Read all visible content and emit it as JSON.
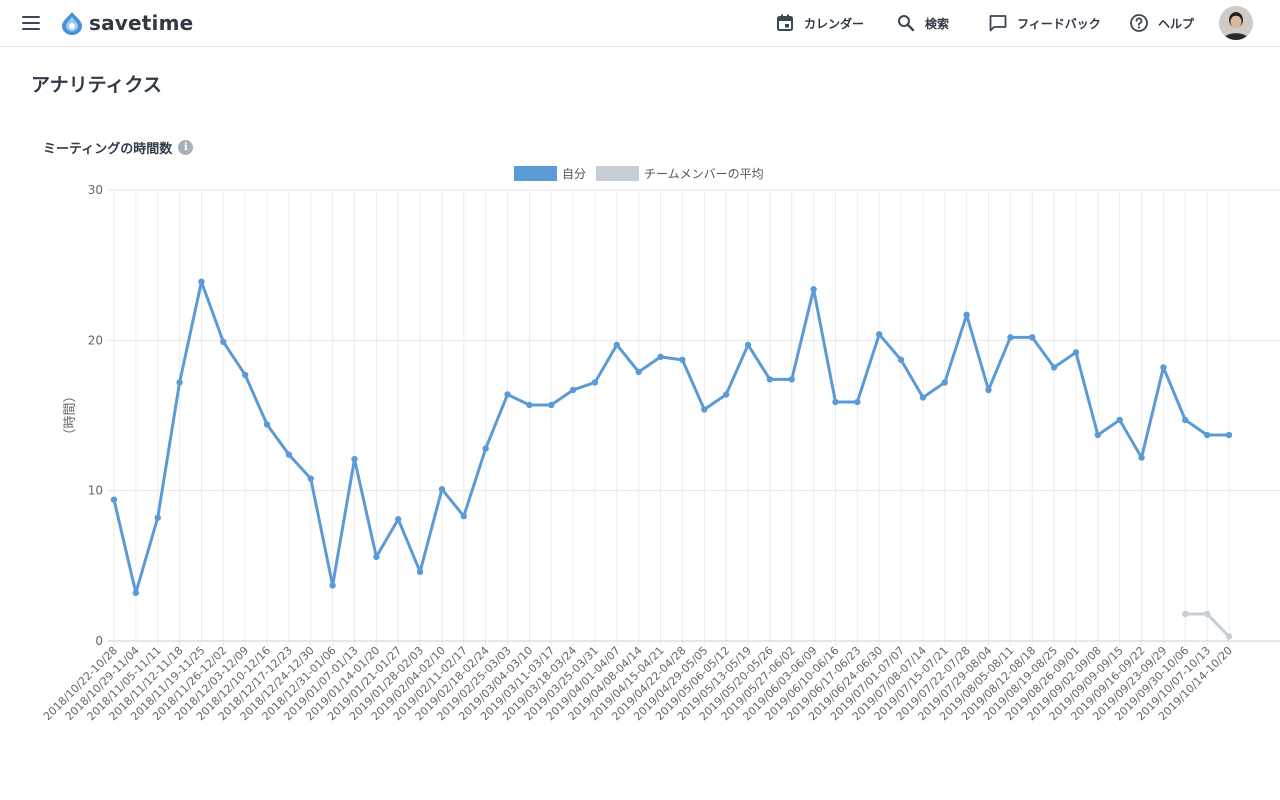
{
  "app": {
    "name": "savetime"
  },
  "nav": {
    "calendar": "カレンダー",
    "search": "検索",
    "feedback": "フィードバック",
    "help": "ヘルプ"
  },
  "page": {
    "title": "アナリティクス"
  },
  "chart_section": {
    "title": "ミーティングの時間数",
    "info_icon": "i"
  },
  "colors": {
    "self": "#5b9bd5",
    "team": "#c6cdd5",
    "accent": "#4a90d9"
  },
  "icons": [
    "menu-icon",
    "calendar-icon",
    "search-icon",
    "feedback-icon",
    "help-icon",
    "info-icon"
  ],
  "chart_data": {
    "type": "line",
    "title": "ミーティングの時間数",
    "ylabel": "（時間）",
    "xlabel": "",
    "ylim": [
      0,
      30
    ],
    "yticks": [
      0,
      10,
      20,
      30
    ],
    "grid": true,
    "legend_position": "top-center",
    "categories": [
      "2018/10/22-10/28",
      "2018/10/29-11/04",
      "2018/11/05-11/11",
      "2018/11/12-11/18",
      "2018/11/19-11/25",
      "2018/11/26-12/02",
      "2018/12/03-12/09",
      "2018/12/10-12/16",
      "2018/12/17-12/23",
      "2018/12/24-12/30",
      "2018/12/31-01/06",
      "2019/01/07-01/13",
      "2019/01/14-01/20",
      "2019/01/21-01/27",
      "2019/01/28-02/03",
      "2019/02/04-02/10",
      "2019/02/11-02/17",
      "2019/02/18-02/24",
      "2019/02/25-03/03",
      "2019/03/04-03/10",
      "2019/03/11-03/17",
      "2019/03/18-03/24",
      "2019/03/25-03/31",
      "2019/04/01-04/07",
      "2019/04/08-04/14",
      "2019/04/15-04/21",
      "2019/04/22-04/28",
      "2019/04/29-05/05",
      "2019/05/06-05/12",
      "2019/05/13-05/19",
      "2019/05/20-05/26",
      "2019/05/27-06/02",
      "2019/06/03-06/09",
      "2019/06/10-06/16",
      "2019/06/17-06/23",
      "2019/06/24-06/30",
      "2019/07/01-07/07",
      "2019/07/08-07/14",
      "2019/07/15-07/21",
      "2019/07/22-07/28",
      "2019/07/29-08/04",
      "2019/08/05-08/11",
      "2019/08/12-08/18",
      "2019/08/19-08/25",
      "2019/08/26-09/01",
      "2019/09/02-09/08",
      "2019/09/09-09/15",
      "2019/09/16-09/22",
      "2019/09/23-09/29",
      "2019/09/30-10/06",
      "2019/10/07-10/13",
      "2019/10/14-10/20"
    ],
    "series": [
      {
        "name": "自分",
        "color": "#5b9bd5",
        "values": [
          9.4,
          3.2,
          8.2,
          17.2,
          23.9,
          19.9,
          17.7,
          14.4,
          12.4,
          10.8,
          3.7,
          12.1,
          5.6,
          8.1,
          4.6,
          10.1,
          8.3,
          12.8,
          16.4,
          15.7,
          15.7,
          16.7,
          17.2,
          19.7,
          17.9,
          18.9,
          18.7,
          15.4,
          16.4,
          19.7,
          17.4,
          17.4,
          23.4,
          15.9,
          15.9,
          20.4,
          18.7,
          16.2,
          17.2,
          21.7,
          16.7,
          20.2,
          20.2,
          18.2,
          19.2,
          13.7,
          14.7,
          12.2,
          18.2,
          14.7,
          13.7,
          13.7
        ]
      },
      {
        "name": "チームメンバーの平均",
        "color": "#c6cdd5",
        "values": [
          null,
          null,
          null,
          null,
          null,
          null,
          null,
          null,
          null,
          null,
          null,
          null,
          null,
          null,
          null,
          null,
          null,
          null,
          null,
          null,
          null,
          null,
          null,
          null,
          null,
          null,
          null,
          null,
          null,
          null,
          null,
          null,
          null,
          null,
          null,
          null,
          null,
          null,
          null,
          null,
          null,
          null,
          null,
          null,
          null,
          null,
          null,
          null,
          null,
          1.8,
          1.8,
          0.3
        ]
      }
    ]
  }
}
